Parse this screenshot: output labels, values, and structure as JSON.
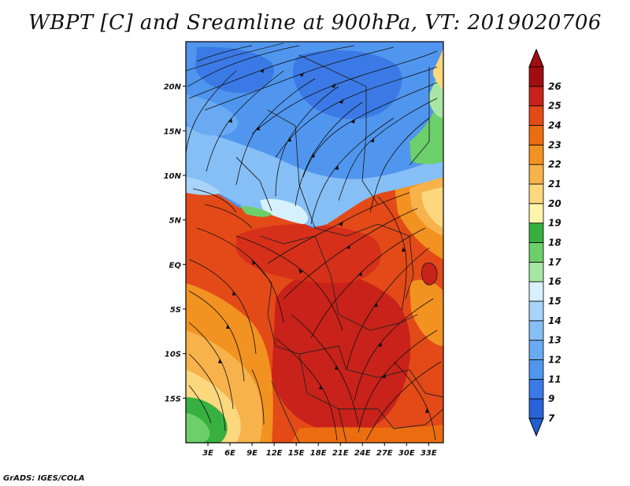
{
  "title": "WBPT [C] and Sreamline at 900hPa, VT: 2019020706",
  "credit": "GrADS: IGES/COLA",
  "map": {
    "lon_range": [
      0,
      35
    ],
    "lat_range": [
      -20,
      25
    ],
    "lat_ticks": [
      {
        "value": 20,
        "label": "20N"
      },
      {
        "value": 15,
        "label": "15N"
      },
      {
        "value": 10,
        "label": "10N"
      },
      {
        "value": 5,
        "label": "5N"
      },
      {
        "value": 0,
        "label": "EQ"
      },
      {
        "value": -5,
        "label": "5S"
      },
      {
        "value": -10,
        "label": "10S"
      },
      {
        "value": -15,
        "label": "15S"
      }
    ],
    "lon_ticks": [
      {
        "value": 3,
        "label": "3E"
      },
      {
        "value": 6,
        "label": "6E"
      },
      {
        "value": 9,
        "label": "9E"
      },
      {
        "value": 12,
        "label": "12E"
      },
      {
        "value": 15,
        "label": "15E"
      },
      {
        "value": 18,
        "label": "18E"
      },
      {
        "value": 21,
        "label": "21E"
      },
      {
        "value": 24,
        "label": "24E"
      },
      {
        "value": 27,
        "label": "27E"
      },
      {
        "value": 30,
        "label": "30E"
      },
      {
        "value": 33,
        "label": "33E"
      }
    ]
  },
  "colorbar": {
    "levels": [
      {
        "label": "7",
        "color": "#2a62d8"
      },
      {
        "label": "9",
        "color": "#3b7ae6"
      },
      {
        "label": "11",
        "color": "#5096ee"
      },
      {
        "label": "12",
        "color": "#6aaaf2"
      },
      {
        "label": "13",
        "color": "#86bff6"
      },
      {
        "label": "14",
        "color": "#a8d4fa"
      },
      {
        "label": "15",
        "color": "#d6f0fc"
      },
      {
        "label": "16",
        "color": "#a8e6a4"
      },
      {
        "label": "17",
        "color": "#6ccf6a"
      },
      {
        "label": "18",
        "color": "#38b040"
      },
      {
        "label": "19",
        "color": "#fdf5ac"
      },
      {
        "label": "20",
        "color": "#fbd87e"
      },
      {
        "label": "21",
        "color": "#f7b24c"
      },
      {
        "label": "22",
        "color": "#f29220"
      },
      {
        "label": "23",
        "color": "#ec6d10"
      },
      {
        "label": "24",
        "color": "#e34a18"
      },
      {
        "label": "25",
        "color": "#c8221a"
      },
      {
        "label": "26",
        "color": "#a20e10"
      }
    ],
    "low_cap_color": "#2060d0",
    "high_cap_color": "#a20e10"
  }
}
